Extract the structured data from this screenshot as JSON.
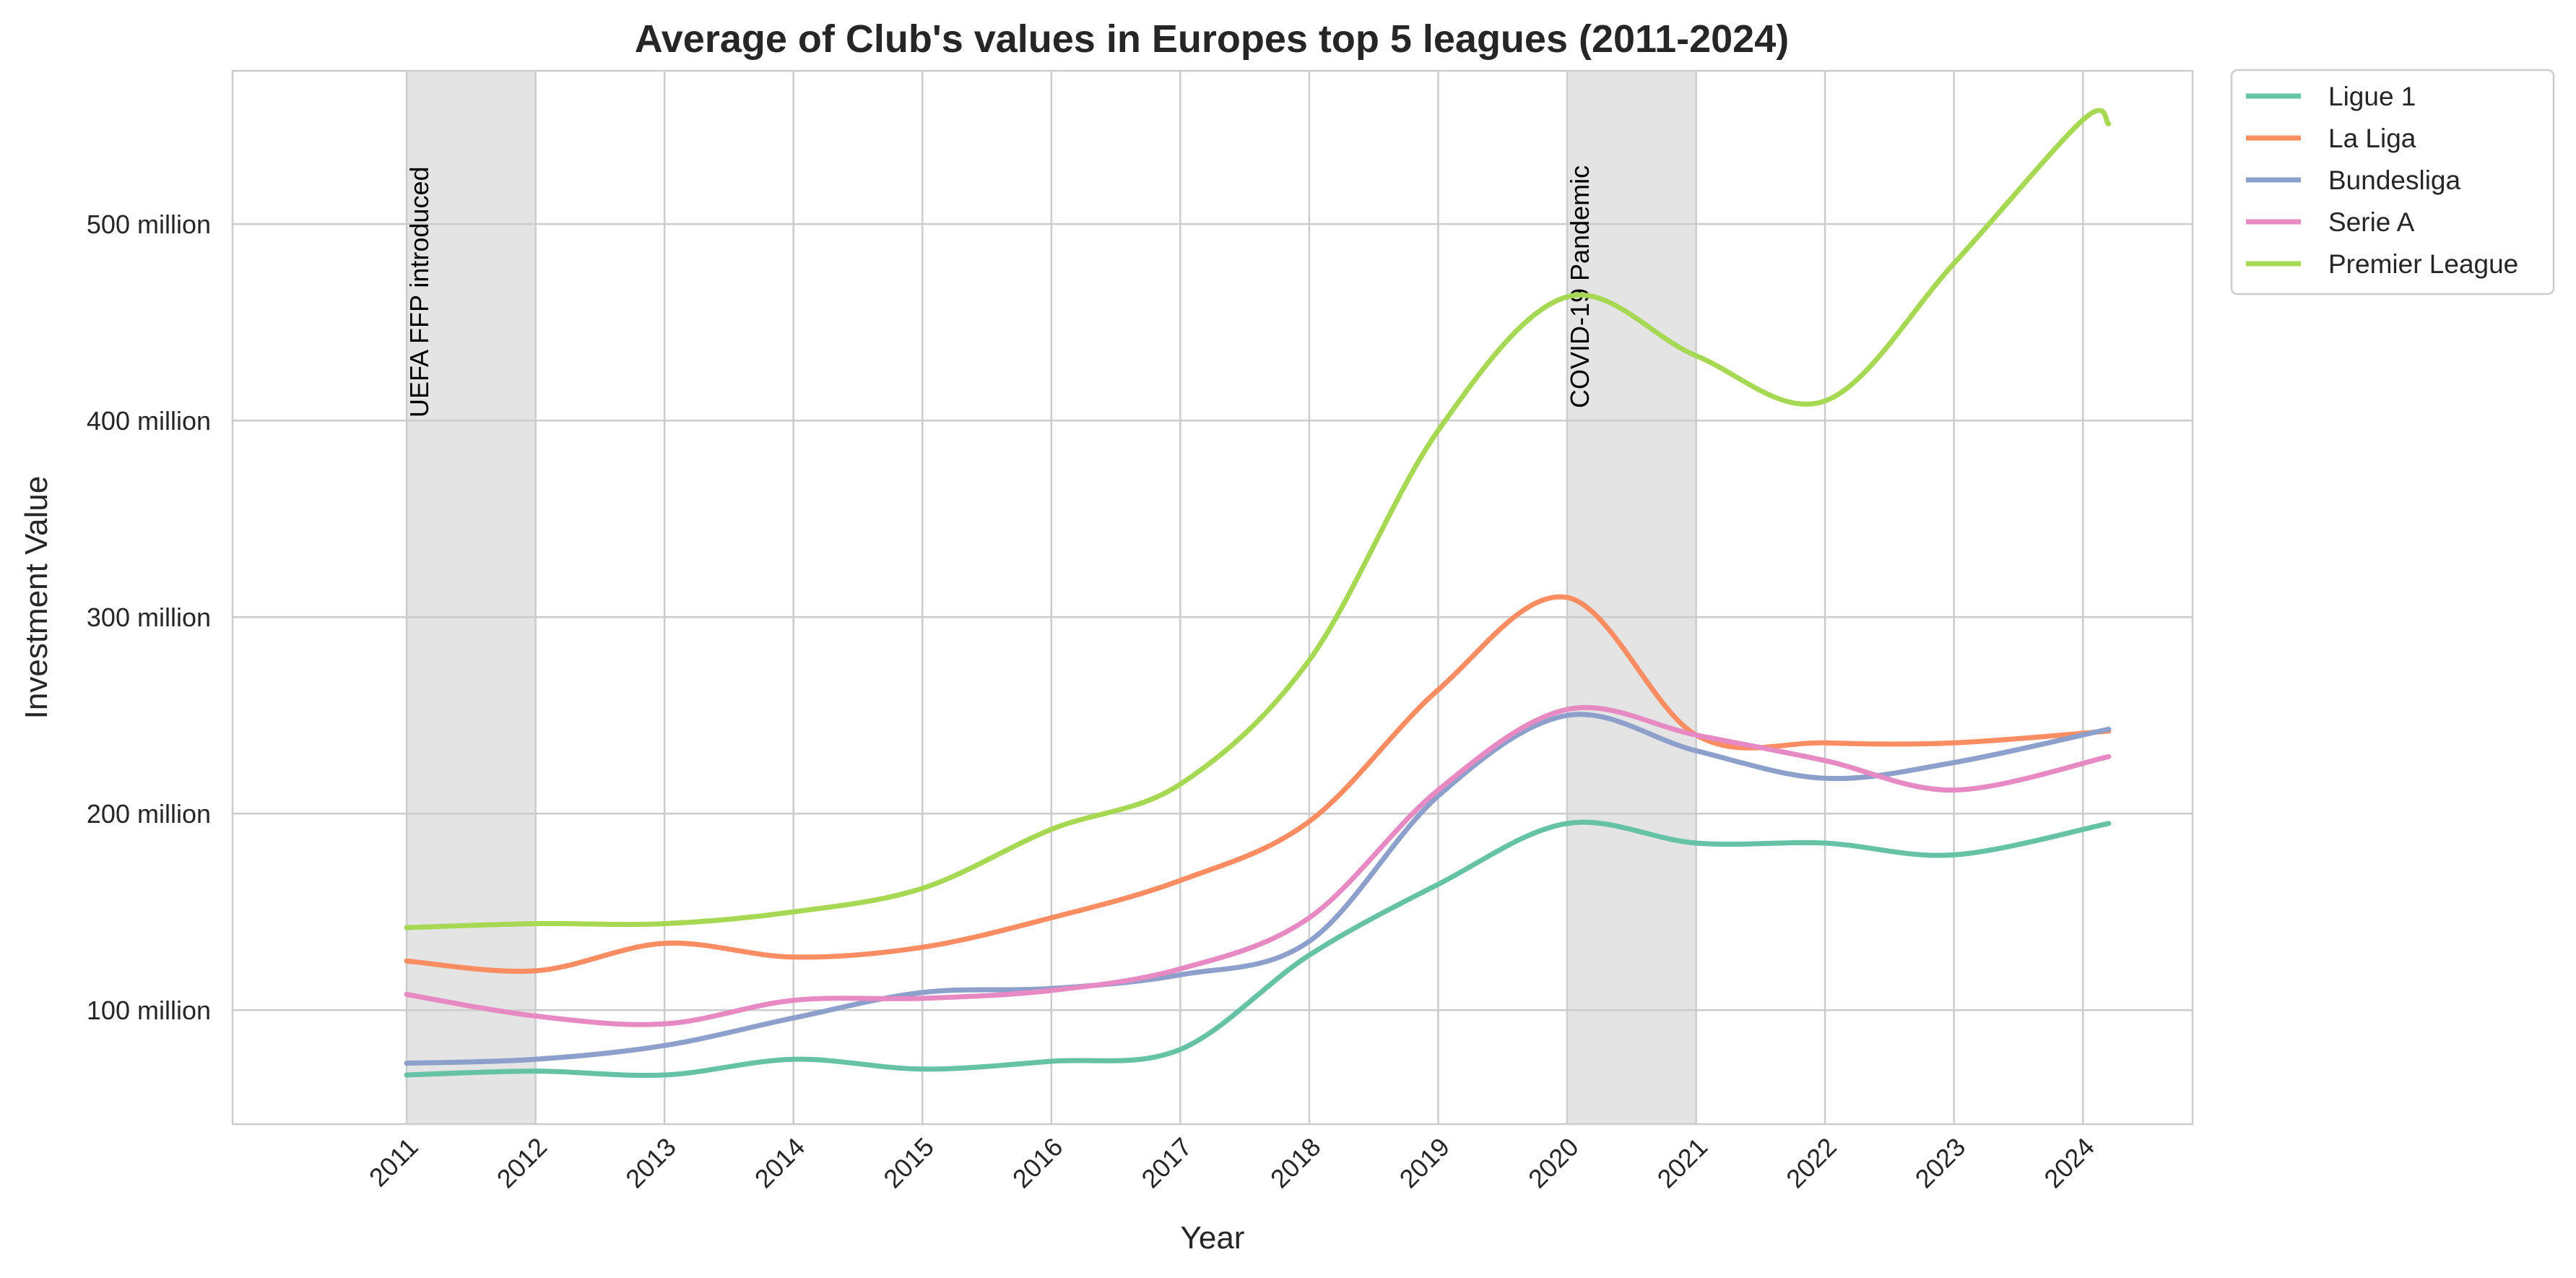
{
  "chart_data": {
    "type": "line",
    "title": "Average of Club's values in Europes top 5 leagues (2011-2024)",
    "xlabel": "Year",
    "ylabel": "Investment Value",
    "x": [
      2011,
      2012,
      2013,
      2014,
      2015,
      2016,
      2017,
      2018,
      2019,
      2020,
      2021,
      2022,
      2023,
      2024
    ],
    "xlim": [
      2009.65,
      2024.85
    ],
    "ylim": [
      42,
      578
    ],
    "y_ticks": [
      {
        "value": 100,
        "label": "100 million"
      },
      {
        "value": 200,
        "label": "200 million"
      },
      {
        "value": 300,
        "label": "300 million"
      },
      {
        "value": 400,
        "label": "400 million"
      },
      {
        "value": 500,
        "label": "500 million"
      }
    ],
    "x_tick_labels": [
      "2011",
      "2012",
      "2013",
      "2014",
      "2015",
      "2016",
      "2017",
      "2018",
      "2019",
      "2020",
      "2021",
      "2022",
      "2023",
      "2024"
    ],
    "grid": true,
    "legend_position": "outside-top-right",
    "shaded_regions": [
      {
        "x_start": 2011,
        "x_end": 2012,
        "label": "UEFA FFP introduced",
        "color": "#d9d9d9"
      },
      {
        "x_start": 2020,
        "x_end": 2021,
        "label": "COVID-19 Pandemic",
        "color": "#d9d9d9"
      }
    ],
    "series": [
      {
        "name": "Ligue 1",
        "color": "#66c2a5",
        "points": [
          [
            2011,
            67
          ],
          [
            2012,
            69
          ],
          [
            2013,
            67
          ],
          [
            2014,
            75
          ],
          [
            2015,
            70
          ],
          [
            2016,
            74
          ],
          [
            2017,
            80
          ],
          [
            2018,
            128
          ],
          [
            2019,
            164
          ],
          [
            2020,
            195
          ],
          [
            2021,
            185
          ],
          [
            2022,
            185
          ],
          [
            2023,
            179
          ],
          [
            2024.2,
            195
          ]
        ]
      },
      {
        "name": "La Liga",
        "color": "#fc8d62",
        "points": [
          [
            2011,
            125
          ],
          [
            2012,
            120
          ],
          [
            2013,
            134
          ],
          [
            2014,
            127
          ],
          [
            2015,
            132
          ],
          [
            2016,
            147
          ],
          [
            2017,
            166
          ],
          [
            2018,
            196
          ],
          [
            2019,
            263
          ],
          [
            2020,
            310
          ],
          [
            2021,
            240
          ],
          [
            2022,
            236
          ],
          [
            2023,
            236
          ],
          [
            2024.2,
            242
          ]
        ]
      },
      {
        "name": "Bundesliga",
        "color": "#8da0cb",
        "points": [
          [
            2011,
            73
          ],
          [
            2012,
            75
          ],
          [
            2013,
            82
          ],
          [
            2014,
            96
          ],
          [
            2015,
            109
          ],
          [
            2016,
            111
          ],
          [
            2017,
            118
          ],
          [
            2018,
            135
          ],
          [
            2019,
            209
          ],
          [
            2020,
            250
          ],
          [
            2021,
            232
          ],
          [
            2022,
            218
          ],
          [
            2023,
            226
          ],
          [
            2024.2,
            243
          ]
        ]
      },
      {
        "name": "Serie A",
        "color": "#e78ac3",
        "points": [
          [
            2011,
            108
          ],
          [
            2012,
            97
          ],
          [
            2013,
            93
          ],
          [
            2014,
            105
          ],
          [
            2015,
            106
          ],
          [
            2016,
            110
          ],
          [
            2017,
            121
          ],
          [
            2018,
            147
          ],
          [
            2019,
            212
          ],
          [
            2020,
            253
          ],
          [
            2021,
            240
          ],
          [
            2022,
            227
          ],
          [
            2023,
            212
          ],
          [
            2024.2,
            229
          ]
        ]
      },
      {
        "name": "Premier League",
        "color": "#a6d854",
        "points": [
          [
            2011,
            142
          ],
          [
            2012,
            144
          ],
          [
            2013,
            144
          ],
          [
            2014,
            150
          ],
          [
            2015,
            162
          ],
          [
            2016,
            192
          ],
          [
            2017,
            215
          ],
          [
            2018,
            278
          ],
          [
            2019,
            395
          ],
          [
            2020,
            463
          ],
          [
            2021,
            433
          ],
          [
            2022,
            410
          ],
          [
            2023,
            480
          ],
          [
            2024,
            553
          ],
          [
            2024.2,
            551
          ]
        ]
      }
    ]
  }
}
